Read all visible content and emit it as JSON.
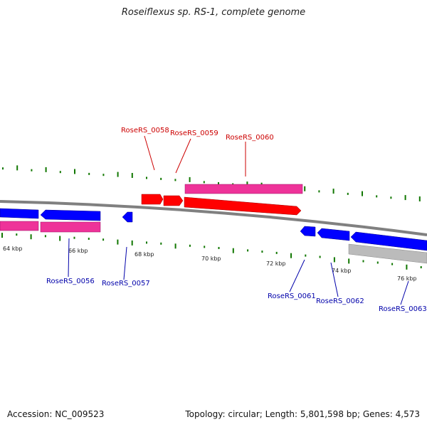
{
  "title": "Roseiflexus sp. RS-1, complete genome",
  "footer": {
    "accession": "Accession: NC_009523",
    "summary": "Topology: circular; Length: 5,801,598 bp; Genes: 4,573"
  },
  "colors": {
    "cds_forward": "#ff0000",
    "cds_reverse": "#0000ff",
    "gene_pink": "#ee3399",
    "pseudo_gray": "#bbbbbb",
    "backbone": "#808080",
    "gc_tick": "#117700",
    "label_forward": "#cc0000",
    "label_reverse": "#0000aa"
  },
  "ruler": {
    "ticks": [
      {
        "label": "64 kbp"
      },
      {
        "label": "66 kbp"
      },
      {
        "label": "68 kbp"
      },
      {
        "label": "70 kbp"
      },
      {
        "label": "72 kbp"
      },
      {
        "label": "74 kbp"
      },
      {
        "label": "76 kbp"
      }
    ]
  },
  "genes": {
    "top": [
      {
        "label": "RoseRS_0058"
      },
      {
        "label": "RoseRS_0059"
      },
      {
        "label": "RoseRS_0060"
      }
    ],
    "bottom": [
      {
        "label": "RoseRS_0056"
      },
      {
        "label": "RoseRS_0057"
      },
      {
        "label": "RoseRS_0061"
      },
      {
        "label": "RoseRS_0062"
      },
      {
        "label": "RoseRS_0063"
      }
    ]
  }
}
